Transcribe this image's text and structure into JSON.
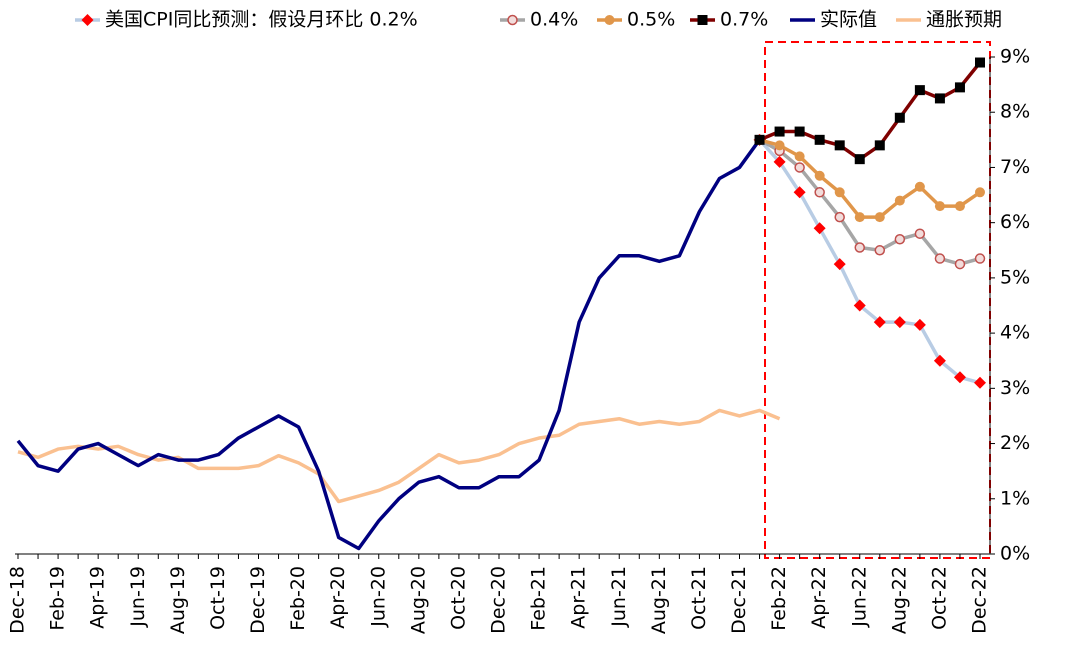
{
  "chart_data": {
    "type": "line",
    "categories": [
      "Dec-18",
      null,
      "Feb-19",
      null,
      "Apr-19",
      null,
      "Jun-19",
      null,
      "Aug-19",
      null,
      "Oct-19",
      null,
      "Dec-19",
      null,
      "Feb-20",
      null,
      "Apr-20",
      null,
      "Jun-20",
      null,
      "Aug-20",
      null,
      "Oct-20",
      null,
      "Dec-20",
      null,
      "Feb-21",
      null,
      "Apr-21",
      null,
      "Jun-21",
      null,
      "Aug-21",
      null,
      "Oct-21",
      null,
      "Dec-21",
      null,
      "Feb-22",
      null,
      "Apr-22",
      null,
      "Jun-22",
      null,
      "Aug-22",
      null,
      "Oct-22",
      null,
      "Dec-22"
    ],
    "series": [
      {
        "name": "美国CPI同比预测：假设月环比 0.2%",
        "color": "#b8cce4",
        "marker_color": "#ff0000",
        "marker": "diamond",
        "values": [
          null,
          null,
          null,
          null,
          null,
          null,
          null,
          null,
          null,
          null,
          null,
          null,
          null,
          null,
          null,
          null,
          null,
          null,
          null,
          null,
          null,
          null,
          null,
          null,
          null,
          null,
          null,
          null,
          null,
          null,
          null,
          null,
          null,
          null,
          null,
          null,
          null,
          7.5,
          7.1,
          6.55,
          5.9,
          5.25,
          4.5,
          4.2,
          4.2,
          4.15,
          3.5,
          3.2,
          3.1
        ]
      },
      {
        "name": "0.4%",
        "color": "#a6a6a6",
        "marker_color": "#c0504d",
        "marker": "circle",
        "values": [
          null,
          null,
          null,
          null,
          null,
          null,
          null,
          null,
          null,
          null,
          null,
          null,
          null,
          null,
          null,
          null,
          null,
          null,
          null,
          null,
          null,
          null,
          null,
          null,
          null,
          null,
          null,
          null,
          null,
          null,
          null,
          null,
          null,
          null,
          null,
          null,
          null,
          7.5,
          7.3,
          7.0,
          6.55,
          6.1,
          5.55,
          5.5,
          5.7,
          5.8,
          5.35,
          5.25,
          5.35
        ]
      },
      {
        "name": "0.5%",
        "color": "#e0964a",
        "marker_color": "#e0964a",
        "marker": "dot",
        "values": [
          null,
          null,
          null,
          null,
          null,
          null,
          null,
          null,
          null,
          null,
          null,
          null,
          null,
          null,
          null,
          null,
          null,
          null,
          null,
          null,
          null,
          null,
          null,
          null,
          null,
          null,
          null,
          null,
          null,
          null,
          null,
          null,
          null,
          null,
          null,
          null,
          null,
          7.5,
          7.4,
          7.2,
          6.85,
          6.55,
          6.1,
          6.1,
          6.4,
          6.65,
          6.3,
          6.3,
          6.55
        ]
      },
      {
        "name": "0.7%",
        "color": "#7f0000",
        "marker_color": "#000000",
        "marker": "square",
        "values": [
          null,
          null,
          null,
          null,
          null,
          null,
          null,
          null,
          null,
          null,
          null,
          null,
          null,
          null,
          null,
          null,
          null,
          null,
          null,
          null,
          null,
          null,
          null,
          null,
          null,
          null,
          null,
          null,
          null,
          null,
          null,
          null,
          null,
          null,
          null,
          null,
          null,
          7.5,
          7.65,
          7.65,
          7.5,
          7.4,
          7.15,
          7.4,
          7.9,
          8.4,
          8.25,
          8.45,
          8.9
        ]
      },
      {
        "name": "实际值",
        "color": "#000080",
        "values": [
          2.05,
          1.6,
          1.5,
          1.9,
          2.0,
          1.8,
          1.6,
          1.8,
          1.7,
          1.7,
          1.8,
          2.1,
          2.3,
          2.5,
          2.3,
          1.5,
          0.3,
          0.1,
          0.6,
          1.0,
          1.3,
          1.4,
          1.2,
          1.2,
          1.4,
          1.4,
          1.7,
          2.6,
          4.2,
          5.0,
          5.4,
          5.4,
          5.3,
          5.4,
          6.2,
          6.8,
          7.0,
          7.5,
          null,
          null,
          null,
          null,
          null,
          null,
          null,
          null,
          null,
          null,
          null
        ]
      },
      {
        "name": "通胀预期",
        "color": "#fac090",
        "values": [
          1.85,
          1.75,
          1.9,
          1.95,
          1.9,
          1.95,
          1.8,
          1.7,
          1.75,
          1.55,
          1.55,
          1.55,
          1.6,
          1.78,
          1.65,
          1.45,
          0.95,
          1.05,
          1.15,
          1.3,
          1.55,
          1.8,
          1.65,
          1.7,
          1.8,
          2.0,
          2.1,
          2.15,
          2.35,
          2.4,
          2.45,
          2.35,
          2.4,
          2.35,
          2.4,
          2.6,
          2.5,
          2.6,
          2.45,
          null,
          null,
          null,
          null,
          null,
          null,
          null,
          null,
          null,
          null
        ]
      }
    ],
    "ylim": [
      0,
      9
    ],
    "yticks": [
      {
        "value": 0,
        "label": "0%"
      },
      {
        "value": 1,
        "label": "1%"
      },
      {
        "value": 2,
        "label": "2%"
      },
      {
        "value": 3,
        "label": "3%"
      },
      {
        "value": 4,
        "label": "4%"
      },
      {
        "value": 5,
        "label": "5%"
      },
      {
        "value": 6,
        "label": "6%"
      },
      {
        "value": 7,
        "label": "7%"
      },
      {
        "value": 8,
        "label": "8%"
      },
      {
        "value": 9,
        "label": "9%"
      }
    ],
    "y_axis_side": "right",
    "legend": "top"
  }
}
